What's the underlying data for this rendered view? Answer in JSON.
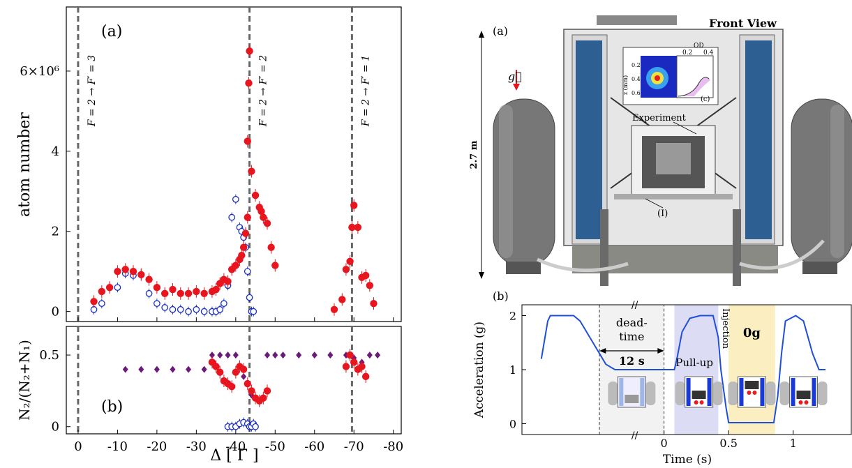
{
  "colors": {
    "red": "#e8141e",
    "blue": "#1a2ec8",
    "purple": "#6b1a7c",
    "dashed": "#666666",
    "curve": "#1f4fd8",
    "pullup_bg": "#dcdcf5",
    "zero_g_bg": "#fbeec0",
    "deadtime_bg": "#f2f2f2"
  },
  "left_figure": {
    "panel_a": {
      "label": "(a)",
      "ylabel": "atom number",
      "y_exponent_label": "6×10⁶",
      "y_ticks": [
        "0",
        "2",
        "4"
      ],
      "transitions": [
        {
          "label": "F = 2 → F′ = 3",
          "x": 0
        },
        {
          "label": "F = 2 → F′ = 2",
          "x": -43.5
        },
        {
          "label": "F = 2 → F′ = 1",
          "x": -69.5
        }
      ]
    },
    "panel_b": {
      "label": "(b)",
      "ylabel": "N₂/(N₂+N₁)",
      "y_ticks": [
        "0",
        "0.5"
      ]
    },
    "xlabel": "Δ [ Γ ]",
    "x_ticks": [
      "0",
      "-10",
      "-20",
      "-30",
      "-40",
      "-50",
      "-60",
      "-70",
      "-80"
    ]
  },
  "chart_data": [
    {
      "type": "scatter",
      "panel": "a",
      "xlabel": "Δ [ Γ ]",
      "ylabel": "atom number",
      "xlim": [
        3,
        -82
      ],
      "ylim": [
        -0.25,
        7.6
      ],
      "y_unit": "×10⁶",
      "series": [
        {
          "color": "red",
          "marker": "filled-circle",
          "x": [
            -4,
            -6,
            -8,
            -10,
            -12,
            -14,
            -16,
            -18,
            -20,
            -22,
            -24,
            -26,
            -28,
            -30,
            -32,
            -34,
            -35,
            -36,
            -37,
            -38,
            -39,
            -40,
            -41,
            -41.5,
            -42,
            -42.5,
            -43,
            -43,
            -43.3,
            -43.5,
            -44,
            -45,
            -46,
            -46.5,
            -47,
            -48,
            -49,
            -50,
            -65,
            -67,
            -68,
            -69,
            -69.5,
            -70,
            -71,
            -72,
            -73,
            -74,
            -75
          ],
          "y": [
            0.25,
            0.5,
            0.6,
            1.0,
            1.05,
            1.0,
            0.92,
            0.8,
            0.6,
            0.45,
            0.55,
            0.45,
            0.45,
            0.5,
            0.45,
            0.5,
            0.55,
            0.7,
            0.8,
            0.75,
            1.05,
            1.15,
            1.3,
            1.4,
            1.6,
            1.95,
            2.35,
            4.25,
            5.7,
            6.5,
            3.5,
            2.9,
            2.6,
            2.5,
            2.35,
            2.2,
            1.6,
            1.15,
            0.05,
            0.3,
            1.05,
            1.25,
            2.1,
            2.65,
            2.1,
            0.85,
            0.9,
            0.65,
            0.2
          ]
        },
        {
          "color": "blue",
          "marker": "open-circle",
          "x": [
            -4,
            -6,
            -8,
            -10,
            -12,
            -14,
            -16,
            -18,
            -20,
            -22,
            -24,
            -26,
            -28,
            -30,
            -32,
            -34,
            -35,
            -36,
            -37,
            -38,
            -39,
            -40,
            -41,
            -41.5,
            -42,
            -42.5,
            -43,
            -43.5,
            -44,
            -44.5
          ],
          "y": [
            0.05,
            0.2,
            0.6,
            0.6,
            0.95,
            0.9,
            0.92,
            0.45,
            0.2,
            0.1,
            0.05,
            0.05,
            0.0,
            0.05,
            0.0,
            0.0,
            0.0,
            0.05,
            0.2,
            0.65,
            2.35,
            2.8,
            2.1,
            2.0,
            1.85,
            1.6,
            1.0,
            0.35,
            0.0,
            0.0
          ]
        }
      ]
    },
    {
      "type": "scatter",
      "panel": "b",
      "xlabel": "Δ [ Γ ]",
      "ylabel": "N₂/(N₂+N₁)",
      "xlim": [
        3,
        -82
      ],
      "ylim": [
        -0.05,
        0.7
      ],
      "series": [
        {
          "color": "red",
          "marker": "filled-circle",
          "x": [
            -34,
            -35,
            -36,
            -37,
            -38,
            -39,
            -40,
            -41,
            -42,
            -43,
            -44,
            -45,
            -46,
            -47,
            -48,
            -68,
            -69,
            -70,
            -71,
            -72,
            -73
          ],
          "y": [
            0.45,
            0.42,
            0.38,
            0.32,
            0.3,
            0.28,
            0.38,
            0.42,
            0.4,
            0.3,
            0.25,
            0.2,
            0.18,
            0.2,
            0.25,
            0.42,
            0.5,
            0.45,
            0.4,
            0.42,
            0.35
          ]
        },
        {
          "color": "purple",
          "marker": "diamond",
          "x": [
            -12,
            -16,
            -20,
            -24,
            -28,
            -32,
            -34,
            -36,
            -38,
            -40,
            -42,
            -43,
            -44,
            -48,
            -50,
            -52,
            -56,
            -60,
            -64,
            -68,
            -70,
            -72,
            -74,
            -76
          ],
          "y": [
            0.4,
            0.4,
            0.4,
            0.4,
            0.4,
            0.4,
            0.5,
            0.5,
            0.5,
            0.5,
            0.35,
            0.3,
            0.22,
            0.5,
            0.5,
            0.5,
            0.5,
            0.5,
            0.5,
            0.5,
            0.48,
            0.45,
            0.5,
            0.5
          ]
        },
        {
          "color": "blue",
          "marker": "open-circle",
          "x": [
            -38,
            -39,
            -40,
            -41,
            -42,
            -43,
            -43.5,
            -44,
            -44.5,
            -45
          ],
          "y": [
            0.0,
            0.0,
            0.0,
            0.02,
            0.03,
            0.02,
            0.0,
            0.0,
            0.02,
            0.0
          ]
        }
      ]
    },
    {
      "type": "line",
      "panel": "right-b",
      "xlabel": "Time (s)",
      "ylabel": "Acceleration (g)",
      "x_ticks": [
        "0",
        "0.5",
        "1"
      ],
      "y_ticks": [
        "0",
        "1",
        "2"
      ],
      "ylim": [
        -0.2,
        2.2
      ],
      "series": [
        {
          "color": "curve",
          "x": [
            -0.95,
            -0.9,
            -0.88,
            -0.85,
            -0.7,
            -0.65,
            -0.55,
            -0.45,
            -0.38,
            0.08,
            0.1,
            0.14,
            0.2,
            0.28,
            0.34,
            0.38,
            0.42,
            0.44,
            0.48,
            0.5,
            0.7,
            0.85,
            0.88,
            0.91,
            0.94,
            1.02,
            1.08,
            1.15,
            1.2,
            1.25
          ],
          "y": [
            1.2,
            1.9,
            2.0,
            2.0,
            2.0,
            1.9,
            1.5,
            1.1,
            1.0,
            1.0,
            1.2,
            1.7,
            1.95,
            2.0,
            2.0,
            2.0,
            1.6,
            1.0,
            0.3,
            0.02,
            0.02,
            0.02,
            0.5,
            1.3,
            1.9,
            2.0,
            1.9,
            1.3,
            1.0,
            1.0
          ]
        }
      ]
    }
  ],
  "right_figure": {
    "panel_a_label": "(a)",
    "front_view": "Front View",
    "gravity_label": "g⃗",
    "height_label": "2.7 m",
    "experiment_label": "Experiment",
    "l_label": "(I)",
    "inset": {
      "od_label": "OD",
      "od_ticks": [
        "0.2",
        "0.4"
      ],
      "z_label": "z (mm)",
      "z_ticks": [
        "0.2",
        "0.4",
        "0.6"
      ],
      "label": "(c)"
    },
    "panel_b_label": "(b)",
    "deadtime_label_1": "dead-",
    "deadtime_label_2": "time",
    "deadtime_value": "12 s",
    "pullup_label": "Pull-up",
    "injection_label": "Injection",
    "zero_g_label": "0g",
    "xlabel": "Time (s)",
    "ylabel": "Acceleration (g)",
    "x_ticks": [
      "0",
      "0.5",
      "1"
    ],
    "y_ticks": [
      "0",
      "1",
      "2"
    ]
  }
}
